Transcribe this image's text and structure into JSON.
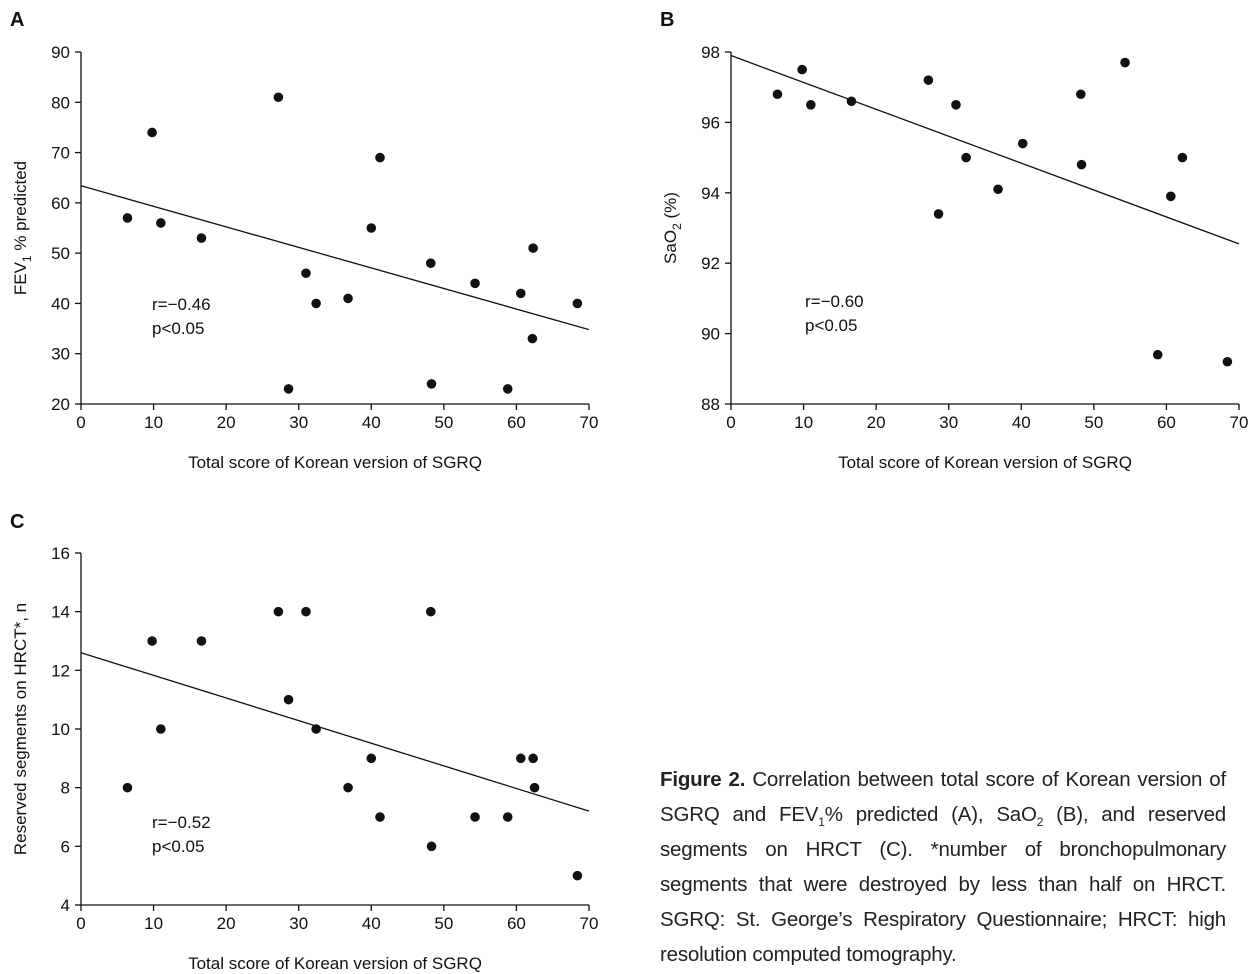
{
  "caption": {
    "label": "Figure 2.",
    "t1": " Correlation between total score of Korean version of SGRQ and FEV",
    "sub1": "1",
    "t2": "% predicted (A), SaO",
    "sub2": "2",
    "t3": " (B), and reserved segments on HRCT (C). *number of bronchopulmonary segments that were destroyed by less than half on HRCT. SGRQ: St. George’s Respiratory Questionnaire; HRCT: high resolution computed tomography."
  },
  "chart_data": [
    {
      "panel": "A",
      "type": "scatter",
      "xlabel": "Total score of Korean version of SGRQ",
      "ylabel": {
        "pre": "FEV",
        "sub": "1",
        "post": " % predicted"
      },
      "xlim": [
        0,
        70
      ],
      "ylim": [
        20,
        90
      ],
      "xticks": [
        0,
        10,
        20,
        30,
        40,
        50,
        60,
        70
      ],
      "yticks": [
        20,
        30,
        40,
        50,
        60,
        70,
        80,
        90
      ],
      "annotation": {
        "r": "r=−0.46",
        "p": "p<0.05"
      },
      "trendline": {
        "x": [
          0,
          70
        ],
        "y": [
          63.4,
          34.8
        ]
      },
      "points": [
        {
          "x": 6.4,
          "y": 57
        },
        {
          "x": 9.8,
          "y": 74
        },
        {
          "x": 11.0,
          "y": 56
        },
        {
          "x": 16.6,
          "y": 53
        },
        {
          "x": 27.2,
          "y": 81
        },
        {
          "x": 28.6,
          "y": 23
        },
        {
          "x": 31.0,
          "y": 46
        },
        {
          "x": 32.4,
          "y": 40
        },
        {
          "x": 36.8,
          "y": 41
        },
        {
          "x": 40.0,
          "y": 55
        },
        {
          "x": 41.2,
          "y": 69
        },
        {
          "x": 48.2,
          "y": 48
        },
        {
          "x": 48.3,
          "y": 24
        },
        {
          "x": 54.3,
          "y": 44
        },
        {
          "x": 58.8,
          "y": 23
        },
        {
          "x": 60.6,
          "y": 42
        },
        {
          "x": 62.3,
          "y": 51
        },
        {
          "x": 62.2,
          "y": 33
        },
        {
          "x": 68.4,
          "y": 40
        }
      ]
    },
    {
      "panel": "B",
      "type": "scatter",
      "xlabel": "Total score of Korean version of SGRQ",
      "ylabel": {
        "pre": "SaO",
        "sub": "2",
        "post": " (%)"
      },
      "xlim": [
        0,
        70
      ],
      "ylim": [
        88,
        98
      ],
      "xticks": [
        0,
        10,
        20,
        30,
        40,
        50,
        60,
        70
      ],
      "yticks": [
        88,
        90,
        92,
        94,
        96,
        98
      ],
      "annotation": {
        "r": "r=−0.60",
        "p": "p<0.05"
      },
      "trendline": {
        "x": [
          0,
          70
        ],
        "y": [
          97.9,
          92.55
        ]
      },
      "points": [
        {
          "x": 6.4,
          "y": 96.8
        },
        {
          "x": 9.8,
          "y": 97.5
        },
        {
          "x": 11.0,
          "y": 96.5
        },
        {
          "x": 16.6,
          "y": 96.6
        },
        {
          "x": 27.2,
          "y": 97.2
        },
        {
          "x": 28.6,
          "y": 93.4
        },
        {
          "x": 31.0,
          "y": 96.5
        },
        {
          "x": 32.4,
          "y": 95.0
        },
        {
          "x": 36.8,
          "y": 94.1
        },
        {
          "x": 40.2,
          "y": 95.4
        },
        {
          "x": 48.2,
          "y": 96.8
        },
        {
          "x": 48.3,
          "y": 94.8
        },
        {
          "x": 54.3,
          "y": 97.7
        },
        {
          "x": 58.8,
          "y": 89.4
        },
        {
          "x": 60.6,
          "y": 93.9
        },
        {
          "x": 62.2,
          "y": 95.0
        },
        {
          "x": 68.4,
          "y": 89.2
        }
      ]
    },
    {
      "panel": "C",
      "type": "scatter",
      "xlabel": "Total score of Korean version of SGRQ",
      "ylabel": {
        "pre": "Reserved segments on HRCT*, n",
        "sub": "",
        "post": ""
      },
      "xlim": [
        0,
        70
      ],
      "ylim": [
        4,
        16
      ],
      "xticks": [
        0,
        10,
        20,
        30,
        40,
        50,
        60,
        70
      ],
      "yticks": [
        4,
        6,
        8,
        10,
        12,
        14,
        16
      ],
      "annotation": {
        "r": "r=−0.52",
        "p": "p<0.05"
      },
      "trendline": {
        "x": [
          0,
          70
        ],
        "y": [
          12.6,
          7.2
        ]
      },
      "points": [
        {
          "x": 6.4,
          "y": 8
        },
        {
          "x": 9.8,
          "y": 13
        },
        {
          "x": 11.0,
          "y": 10
        },
        {
          "x": 16.6,
          "y": 13
        },
        {
          "x": 27.2,
          "y": 14
        },
        {
          "x": 28.6,
          "y": 11
        },
        {
          "x": 31.0,
          "y": 14
        },
        {
          "x": 32.4,
          "y": 10
        },
        {
          "x": 36.8,
          "y": 8
        },
        {
          "x": 40.0,
          "y": 9
        },
        {
          "x": 41.2,
          "y": 7
        },
        {
          "x": 48.2,
          "y": 14
        },
        {
          "x": 48.3,
          "y": 6
        },
        {
          "x": 54.3,
          "y": 7
        },
        {
          "x": 58.8,
          "y": 7
        },
        {
          "x": 60.6,
          "y": 9
        },
        {
          "x": 62.3,
          "y": 9
        },
        {
          "x": 62.5,
          "y": 8
        },
        {
          "x": 68.4,
          "y": 5
        }
      ]
    }
  ]
}
